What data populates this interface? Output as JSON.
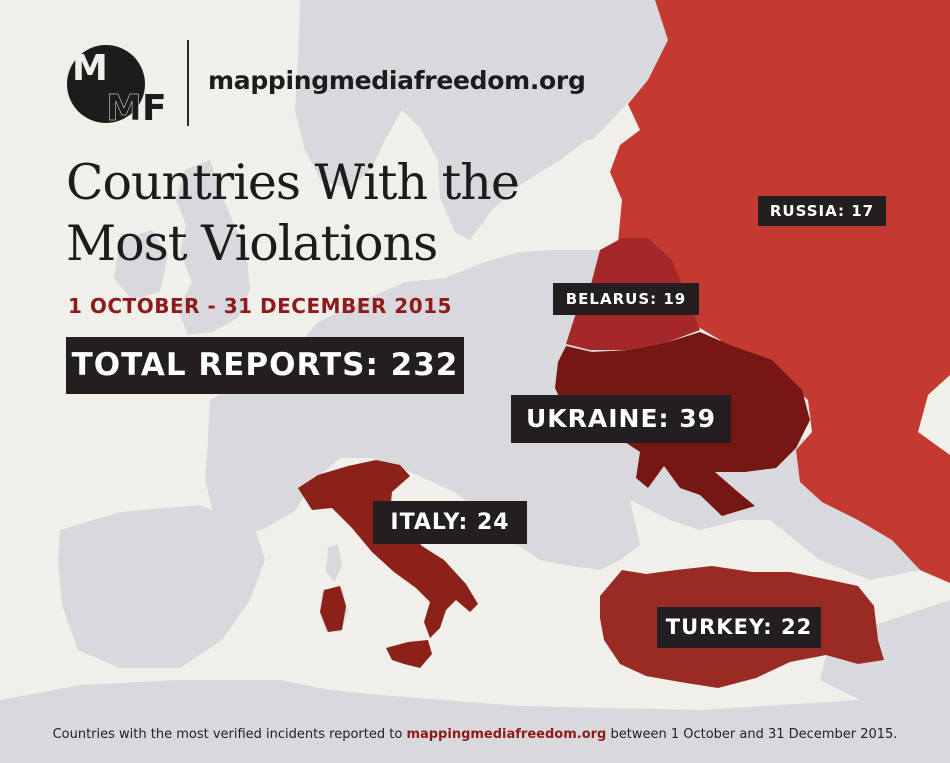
{
  "header": {
    "logo_text": "MMF",
    "site": "mappingmediafreedom.org"
  },
  "title_line1": "Countries With the",
  "title_line2": "Most Violations",
  "date_range": "1 OCTOBER - 31 DECEMBER 2015",
  "total": {
    "label": "TOTAL REPORTS:",
    "value": "232"
  },
  "countries": [
    {
      "name": "RUSSIA:",
      "count": "17",
      "reports": 17,
      "color": "#c53a30"
    },
    {
      "name": "BELARUS:",
      "count": "19",
      "reports": 19,
      "color": "#a4282a"
    },
    {
      "name": "UKRAINE:",
      "count": "39",
      "reports": 39,
      "color": "#761714"
    },
    {
      "name": "ITALY:",
      "count": "24",
      "reports": 24,
      "color": "#8b2119"
    },
    {
      "name": "TURKEY:",
      "count": "22",
      "reports": 22,
      "color": "#9a2a24"
    }
  ],
  "footer": {
    "pre": "Countries with the most verified incidents reported to",
    "link": "mappingmediafreedom.org",
    "post": "between 1 October and 31 December 2015."
  },
  "colors": {
    "background": "#f1efea",
    "land": "#d9d8dd",
    "label_bg": "#231f20",
    "accent": "#8e1b1b"
  }
}
